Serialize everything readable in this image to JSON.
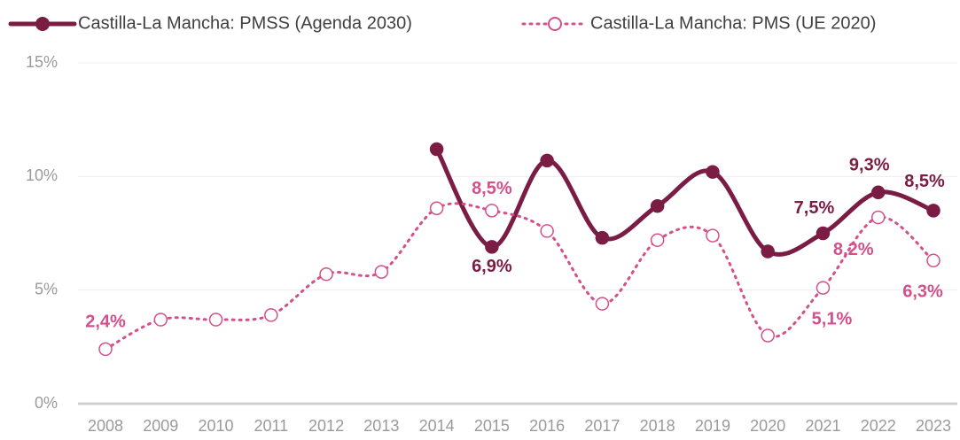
{
  "chart_data": {
    "type": "line",
    "categories": [
      "2008",
      "2009",
      "2010",
      "2011",
      "2012",
      "2013",
      "2014",
      "2015",
      "2016",
      "2017",
      "2018",
      "2019",
      "2020",
      "2021",
      "2022",
      "2023"
    ],
    "series": [
      {
        "name": "Castilla-La Mancha: PMSS (Agenda 2030)",
        "color": "#7b1c45",
        "values": [
          null,
          null,
          null,
          null,
          null,
          null,
          11.2,
          6.9,
          10.7,
          7.3,
          8.7,
          10.2,
          6.7,
          7.5,
          9.3,
          8.5
        ],
        "value_labels": [
          null,
          null,
          null,
          null,
          null,
          null,
          null,
          "6,9%",
          null,
          null,
          null,
          null,
          null,
          "7,5%",
          "9,3%",
          "8,5%"
        ]
      },
      {
        "name": "Castilla-La Mancha: PMS (UE 2020)",
        "color": "#d4508a",
        "values": [
          2.4,
          3.7,
          3.7,
          3.9,
          5.7,
          5.8,
          8.6,
          8.5,
          7.6,
          4.4,
          7.2,
          7.4,
          3.0,
          5.1,
          8.2,
          6.3
        ],
        "value_labels": [
          "2,4%",
          null,
          null,
          null,
          null,
          null,
          null,
          "8,5%",
          null,
          null,
          null,
          null,
          null,
          "5,1%",
          "8,2%",
          "6,3%"
        ]
      }
    ],
    "ylim": [
      0,
      15
    ],
    "yticks": [
      {
        "value": 0,
        "label": "0%"
      },
      {
        "value": 5,
        "label": "5%"
      },
      {
        "value": 10,
        "label": "10%"
      },
      {
        "value": 15,
        "label": "15%"
      }
    ],
    "grid": true
  }
}
